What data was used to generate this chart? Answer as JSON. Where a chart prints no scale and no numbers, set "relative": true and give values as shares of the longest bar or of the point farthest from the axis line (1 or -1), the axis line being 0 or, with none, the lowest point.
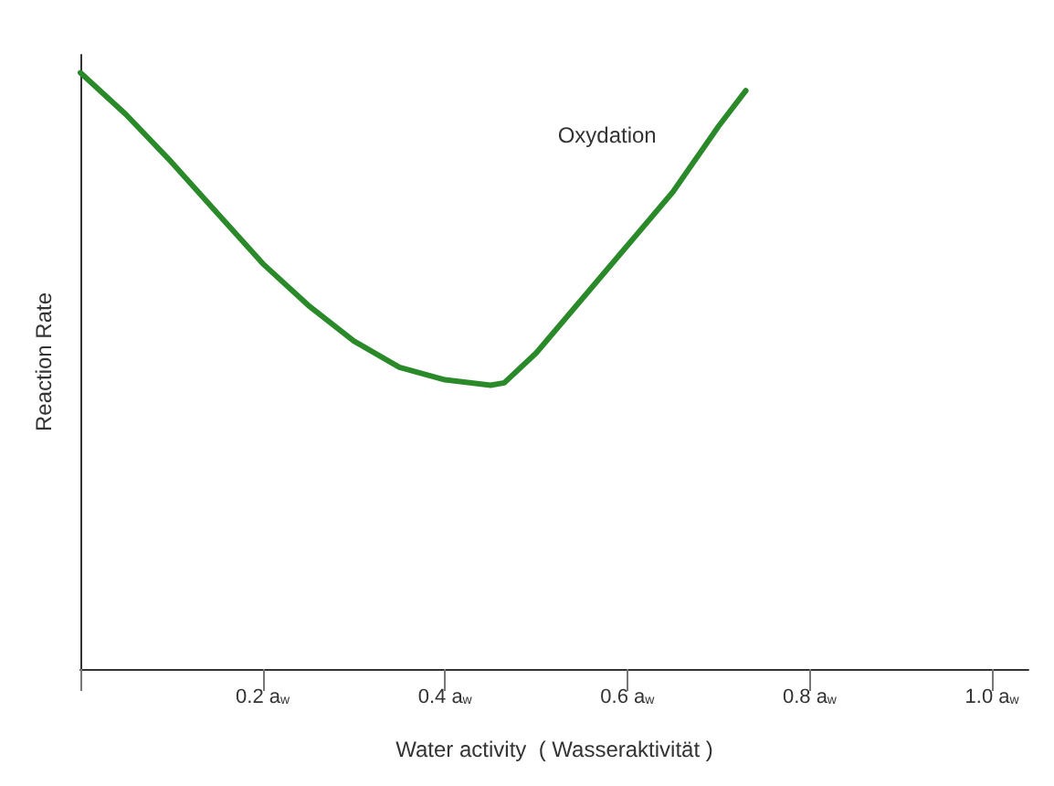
{
  "chart_data": {
    "type": "line",
    "relative": true,
    "xlabel": "Water activity  ( Wasseraktivität )",
    "ylabel": "Reaction Rate",
    "x": [
      0,
      0.05,
      0.1,
      0.15,
      0.2,
      0.25,
      0.3,
      0.35,
      0.4,
      0.45,
      0.465,
      0.5,
      0.55,
      0.6,
      0.65,
      0.7,
      0.73
    ],
    "series": [
      {
        "color": "#2a8a2a",
        "values": [
          1,
          0.93,
          0.85,
          0.765,
          0.68,
          0.61,
          0.55,
          0.506,
          0.485,
          0.476,
          0.48,
          0.53,
          0.62,
          0.71,
          0.8,
          0.91,
          0.97
        ]
      }
    ],
    "xlim": [
      0,
      1.04
    ],
    "xticks": [
      {
        "value": 0,
        "label": null
      },
      {
        "value": 0.2,
        "label": "0.2 a$_{w}$"
      },
      {
        "value": 0.4,
        "label": "0.4 a$_{w}$"
      },
      {
        "value": 0.6,
        "label": "0.6 a$_{w}$"
      },
      {
        "value": 0.8,
        "label": "0.8 a$_{w}$"
      },
      {
        "value": 1.0,
        "label": "1.0 a$_{w}$"
      }
    ],
    "annotations": [
      "Oxydation"
    ],
    "grid": false,
    "marker": "none",
    "line_style": "solid"
  }
}
